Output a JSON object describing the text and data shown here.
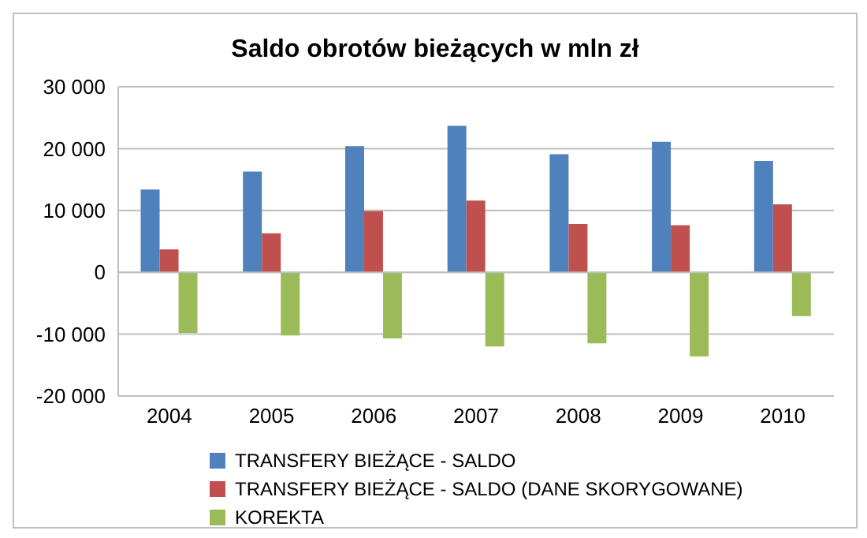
{
  "chart_data": {
    "type": "bar",
    "title": "Saldo obrotów bieżących w mln zł",
    "categories": [
      "2004",
      "2005",
      "2006",
      "2007",
      "2008",
      "2009",
      "2010"
    ],
    "series": [
      {
        "name": "TRANSFERY BIEŻĄCE - SALDO",
        "color": "#4f81bd",
        "values": [
          13400,
          16300,
          20400,
          23700,
          19100,
          21100,
          18000
        ]
      },
      {
        "name": "TRANSFERY BIEŻĄCE - SALDO (DANE SKORYGOWANE)",
        "color": "#c0504d",
        "values": [
          3700,
          6300,
          9900,
          11600,
          7800,
          7600,
          11000
        ]
      },
      {
        "name": "KOREKTA",
        "color": "#9bbb59",
        "values": [
          -9800,
          -10200,
          -10700,
          -12000,
          -11500,
          -13600,
          -7100
        ]
      }
    ],
    "ylim": [
      -20000,
      30000
    ],
    "yticks": [
      {
        "value": -20000,
        "label": "-20 000"
      },
      {
        "value": -10000,
        "label": "-10 000"
      },
      {
        "value": 0,
        "label": "0"
      },
      {
        "value": 10000,
        "label": "10 000"
      },
      {
        "value": 20000,
        "label": "20 000"
      },
      {
        "value": 30000,
        "label": "30 000"
      }
    ],
    "grid": "y",
    "legend": "bottom"
  }
}
